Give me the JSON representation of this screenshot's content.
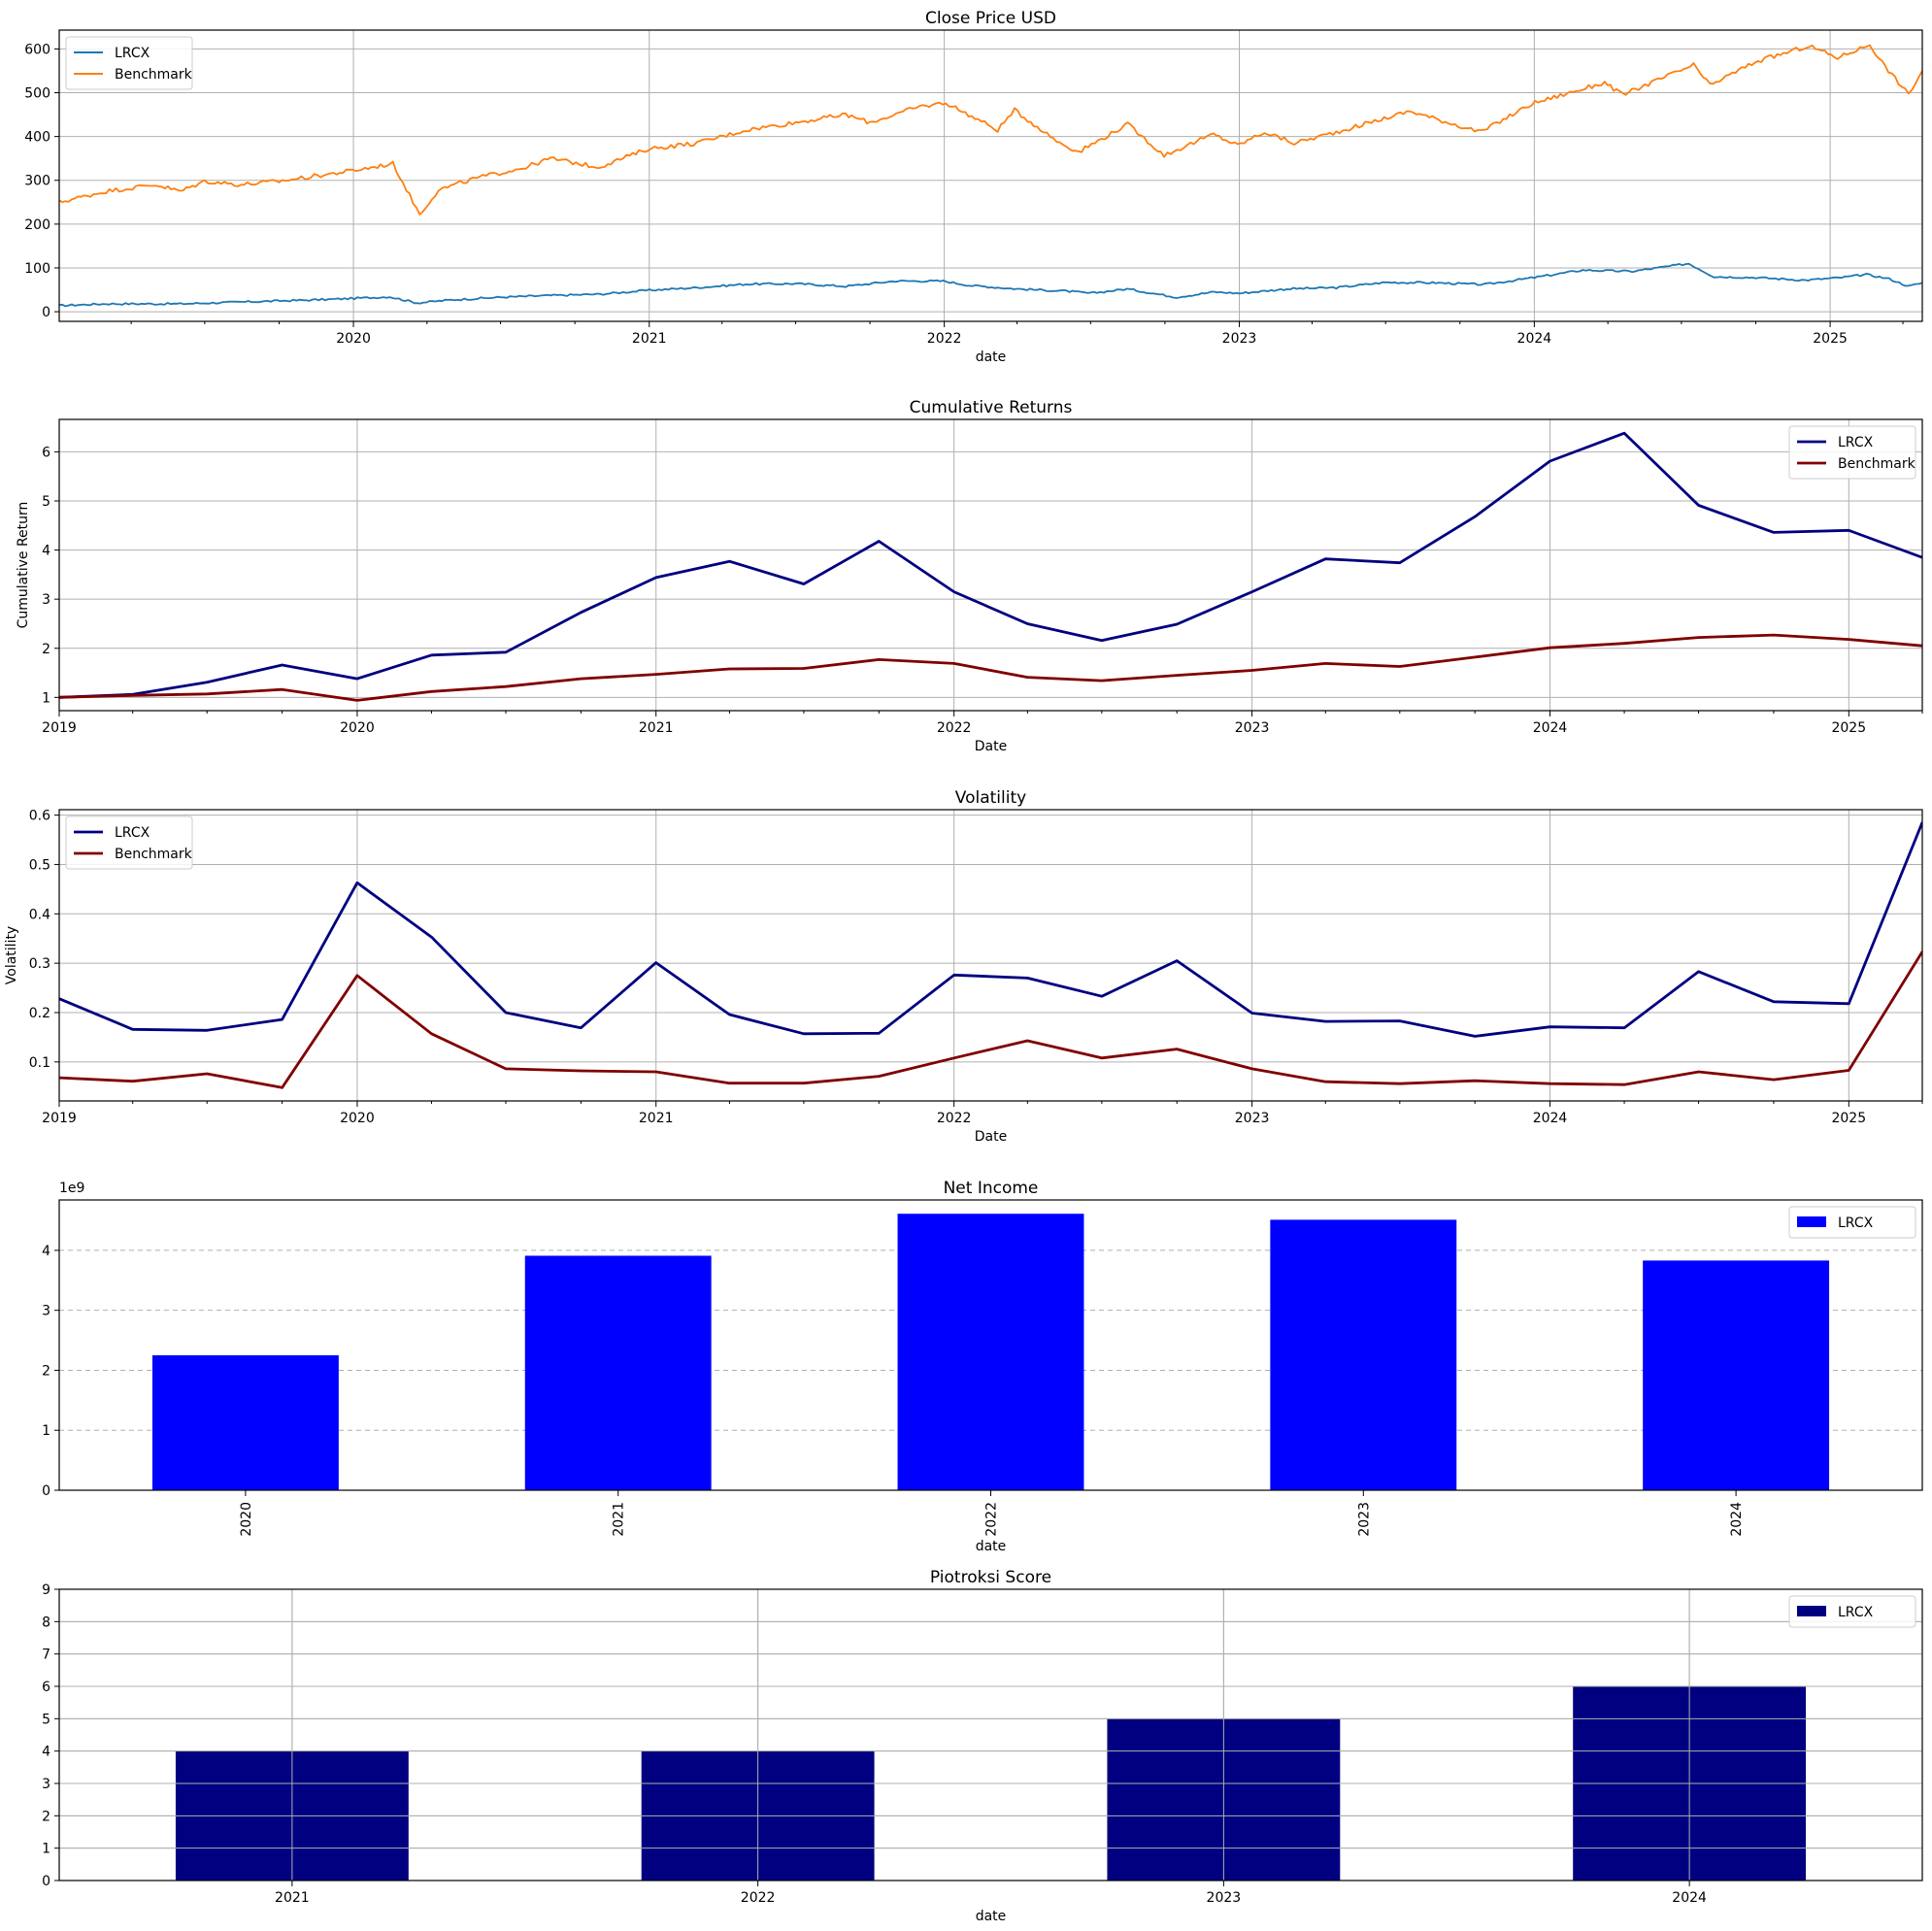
{
  "chart_data": [
    {
      "type": "line",
      "title": "Close Price USD",
      "xlabel": "date",
      "ylabel": "",
      "xlim": [
        "2019-01-02",
        "2025-04-25"
      ],
      "ylim": [
        -22,
        643
      ],
      "x_ticks": [
        "2020",
        "2021",
        "2022",
        "2023",
        "2024",
        "2025"
      ],
      "y_ticks": [
        0,
        100,
        200,
        300,
        400,
        500,
        600
      ],
      "grid": "both",
      "legend": "upper left",
      "series": [
        {
          "name": "LRCX",
          "color": "#1f77b4",
          "points": [
            [
              "2019-01-02",
              14
            ],
            [
              "2019-03-01",
              18
            ],
            [
              "2019-06-01",
              18
            ],
            [
              "2019-09-01",
              23
            ],
            [
              "2019-12-01",
              28
            ],
            [
              "2020-02-15",
              34
            ],
            [
              "2020-03-20",
              20
            ],
            [
              "2020-05-01",
              27
            ],
            [
              "2020-07-01",
              33
            ],
            [
              "2020-09-01",
              37
            ],
            [
              "2020-11-01",
              40
            ],
            [
              "2021-01-01",
              49
            ],
            [
              "2021-03-01",
              55
            ],
            [
              "2021-05-01",
              63
            ],
            [
              "2021-07-01",
              64
            ],
            [
              "2021-09-01",
              58
            ],
            [
              "2021-11-01",
              70
            ],
            [
              "2021-12-31",
              70
            ],
            [
              "2022-02-01",
              60
            ],
            [
              "2022-04-01",
              52
            ],
            [
              "2022-06-01",
              47
            ],
            [
              "2022-07-01",
              42
            ],
            [
              "2022-08-15",
              52
            ],
            [
              "2022-10-15",
              33
            ],
            [
              "2022-12-01",
              45
            ],
            [
              "2023-01-01",
              42
            ],
            [
              "2023-03-01",
              52
            ],
            [
              "2023-05-01",
              55
            ],
            [
              "2023-07-01",
              67
            ],
            [
              "2023-09-01",
              66
            ],
            [
              "2023-10-31",
              62
            ],
            [
              "2024-01-01",
              78
            ],
            [
              "2024-03-01",
              95
            ],
            [
              "2024-05-01",
              92
            ],
            [
              "2024-07-10",
              110
            ],
            [
              "2024-08-10",
              80
            ],
            [
              "2024-10-01",
              78
            ],
            [
              "2024-12-01",
              72
            ],
            [
              "2025-01-15",
              78
            ],
            [
              "2025-02-15",
              85
            ],
            [
              "2025-03-15",
              75
            ],
            [
              "2025-04-08",
              58
            ],
            [
              "2025-04-25",
              66
            ]
          ]
        },
        {
          "name": "Benchmark",
          "color": "#ff7f0e",
          "points": [
            [
              "2019-01-02",
              250
            ],
            [
              "2019-03-01",
              275
            ],
            [
              "2019-05-01",
              290
            ],
            [
              "2019-06-01",
              275
            ],
            [
              "2019-07-01",
              298
            ],
            [
              "2019-08-15",
              290
            ],
            [
              "2019-10-01",
              298
            ],
            [
              "2019-12-31",
              322
            ],
            [
              "2020-02-19",
              338
            ],
            [
              "2020-03-23",
              222
            ],
            [
              "2020-04-15",
              278
            ],
            [
              "2020-06-01",
              305
            ],
            [
              "2020-08-01",
              330
            ],
            [
              "2020-09-01",
              350
            ],
            [
              "2020-10-30",
              330
            ],
            [
              "2020-12-31",
              372
            ],
            [
              "2021-03-01",
              385
            ],
            [
              "2021-05-01",
              415
            ],
            [
              "2021-07-01",
              432
            ],
            [
              "2021-09-01",
              450
            ],
            [
              "2021-10-01",
              432
            ],
            [
              "2021-12-01",
              468
            ],
            [
              "2022-01-03",
              477
            ],
            [
              "2022-03-08",
              415
            ],
            [
              "2022-03-29",
              460
            ],
            [
              "2022-05-20",
              390
            ],
            [
              "2022-06-16",
              365
            ],
            [
              "2022-08-16",
              428
            ],
            [
              "2022-09-30",
              357
            ],
            [
              "2022-11-30",
              405
            ],
            [
              "2022-12-30",
              380
            ],
            [
              "2023-02-01",
              410
            ],
            [
              "2023-03-10",
              385
            ],
            [
              "2023-05-01",
              410
            ],
            [
              "2023-07-31",
              458
            ],
            [
              "2023-10-27",
              410
            ],
            [
              "2023-12-29",
              475
            ],
            [
              "2024-03-28",
              523
            ],
            [
              "2024-04-19",
              495
            ],
            [
              "2024-07-16",
              563
            ],
            [
              "2024-08-05",
              517
            ],
            [
              "2024-09-30",
              570
            ],
            [
              "2024-12-06",
              607
            ],
            [
              "2025-01-10",
              580
            ],
            [
              "2025-02-19",
              610
            ],
            [
              "2025-03-10",
              560
            ],
            [
              "2025-04-08",
              496
            ],
            [
              "2025-04-25",
              550
            ]
          ]
        }
      ]
    },
    {
      "type": "line",
      "title": "Cumulative Returns",
      "xlabel": "Date",
      "ylabel": "Cumulative Return",
      "xlim": [
        "2019-01-01",
        "2025-04-01"
      ],
      "ylim": [
        0.73,
        6.66
      ],
      "x_ticks": [
        "2019",
        "2020",
        "2021",
        "2022",
        "2023",
        "2024",
        "2025"
      ],
      "y_ticks": [
        1,
        2,
        3,
        4,
        5,
        6
      ],
      "grid": "both",
      "legend": "upper right",
      "x": [
        "2019-01-01",
        "2019-04-01",
        "2019-07-01",
        "2019-10-01",
        "2020-01-01",
        "2020-04-01",
        "2020-07-01",
        "2020-10-01",
        "2021-01-01",
        "2021-04-01",
        "2021-07-01",
        "2021-10-01",
        "2022-01-01",
        "2022-04-01",
        "2022-07-01",
        "2022-10-01",
        "2023-01-01",
        "2023-04-01",
        "2023-07-01",
        "2023-10-01",
        "2024-01-01",
        "2024-04-01",
        "2024-07-01",
        "2024-10-01",
        "2025-01-01",
        "2025-04-01"
      ],
      "series": [
        {
          "name": "LRCX",
          "color": "#000080",
          "values": [
            1.0,
            1.06,
            1.31,
            1.66,
            1.38,
            1.86,
            1.92,
            2.73,
            3.44,
            3.77,
            3.31,
            4.18,
            3.15,
            2.5,
            2.16,
            2.49,
            3.15,
            3.82,
            3.74,
            4.68,
            5.81,
            6.38,
            4.91,
            4.36,
            4.4,
            3.85
          ]
        },
        {
          "name": "Benchmark",
          "color": "#800000",
          "values": [
            1.0,
            1.04,
            1.07,
            1.16,
            0.94,
            1.12,
            1.22,
            1.38,
            1.47,
            1.58,
            1.59,
            1.77,
            1.69,
            1.41,
            1.34,
            1.45,
            1.55,
            1.69,
            1.63,
            1.82,
            2.01,
            2.1,
            2.22,
            2.27,
            2.18,
            2.05
          ]
        }
      ]
    },
    {
      "type": "line",
      "title": "Volatility",
      "xlabel": "Date",
      "ylabel": "Volatility",
      "xlim": [
        "2019-01-01",
        "2025-04-01"
      ],
      "ylim": [
        0.021,
        0.611
      ],
      "x_ticks": [
        "2019",
        "2020",
        "2021",
        "2022",
        "2023",
        "2024",
        "2025"
      ],
      "y_ticks": [
        0.1,
        0.2,
        0.3,
        0.4,
        0.5,
        0.6
      ],
      "grid": "both",
      "legend": "upper left",
      "x": [
        "2019-01-01",
        "2019-04-01",
        "2019-07-01",
        "2019-10-01",
        "2020-01-01",
        "2020-04-01",
        "2020-07-01",
        "2020-10-01",
        "2021-01-01",
        "2021-04-01",
        "2021-07-01",
        "2021-10-01",
        "2022-01-01",
        "2022-04-01",
        "2022-07-01",
        "2022-10-01",
        "2023-01-01",
        "2023-04-01",
        "2023-07-01",
        "2023-10-01",
        "2024-01-01",
        "2024-04-01",
        "2024-07-01",
        "2024-10-01",
        "2025-01-01",
        "2025-04-01"
      ],
      "series": [
        {
          "name": "LRCX",
          "color": "#000080",
          "values": [
            0.228,
            0.166,
            0.164,
            0.186,
            0.463,
            0.353,
            0.2,
            0.169,
            0.301,
            0.196,
            0.157,
            0.158,
            0.276,
            0.27,
            0.233,
            0.305,
            0.199,
            0.182,
            0.183,
            0.152,
            0.171,
            0.169,
            0.283,
            0.222,
            0.218,
            0.585
          ]
        },
        {
          "name": "Benchmark",
          "color": "#800000",
          "values": [
            0.068,
            0.061,
            0.076,
            0.048,
            0.275,
            0.157,
            0.086,
            0.082,
            0.08,
            0.057,
            0.057,
            0.071,
            0.108,
            0.143,
            0.108,
            0.126,
            0.086,
            0.06,
            0.056,
            0.062,
            0.056,
            0.054,
            0.08,
            0.064,
            0.083,
            0.323
          ]
        }
      ]
    },
    {
      "type": "bar",
      "title": "Net Income",
      "xlabel": "date",
      "ylabel": "",
      "offset_label": "1e9",
      "categories": [
        "2020",
        "2021",
        "2022",
        "2023",
        "2024"
      ],
      "ylim": [
        0,
        4.84
      ],
      "y_ticks": [
        0,
        1,
        2,
        3,
        4
      ],
      "grid": "y-dashed",
      "legend": "upper right",
      "series": [
        {
          "name": "LRCX",
          "color": "#0000ff",
          "values": [
            2.25,
            3.91,
            4.61,
            4.51,
            3.83
          ]
        }
      ]
    },
    {
      "type": "bar",
      "title": "Piotroksi Score",
      "xlabel": "date",
      "ylabel": "",
      "categories": [
        "2021",
        "2022",
        "2023",
        "2024"
      ],
      "ylim": [
        0,
        9
      ],
      "y_ticks": [
        0,
        1,
        2,
        3,
        4,
        5,
        6,
        7,
        8,
        9
      ],
      "grid": "both",
      "legend": "upper right",
      "series": [
        {
          "name": "LRCX",
          "color": "#000080",
          "values": [
            4,
            4,
            5,
            6
          ]
        }
      ]
    }
  ]
}
